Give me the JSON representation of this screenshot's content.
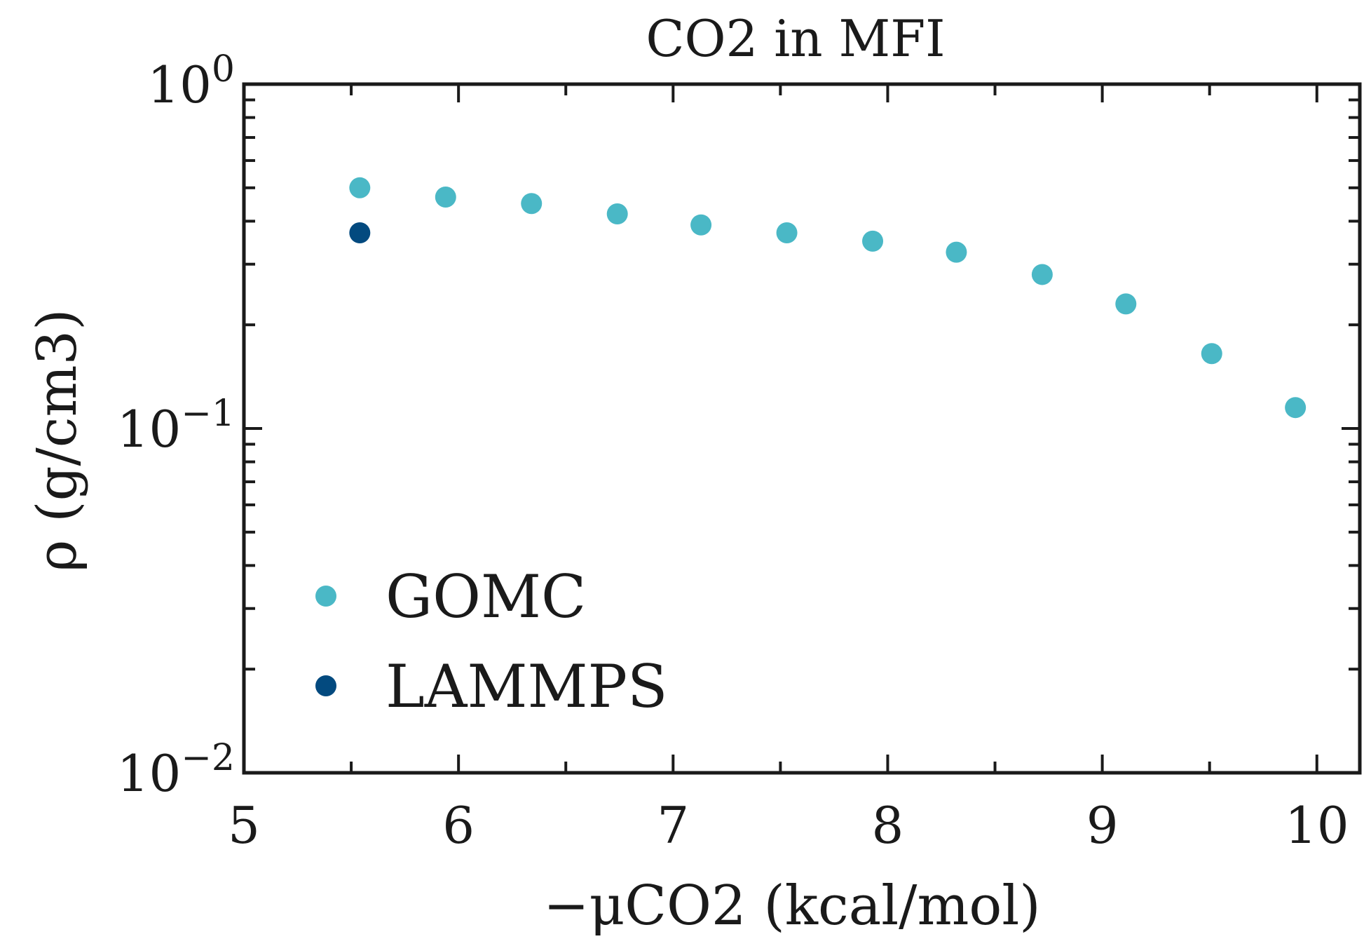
{
  "chart_data": {
    "type": "scatter",
    "title": "CO2 in MFI",
    "xlabel": "−μCO2 (kcal/mol)",
    "ylabel": "ρ (g/cm3)",
    "xlim": [
      5,
      10.2
    ],
    "ylim": [
      0.01,
      1
    ],
    "yscale": "log",
    "x_ticks": [
      5,
      6,
      7,
      8,
      9,
      10
    ],
    "x_tick_labels": [
      "5",
      "6",
      "7",
      "8",
      "9",
      "10"
    ],
    "y_ticks": [
      0.01,
      0.1,
      1
    ],
    "y_tick_labels": [
      {
        "base": "10",
        "exp": "−2"
      },
      {
        "base": "10",
        "exp": "−1"
      },
      {
        "base": "10",
        "exp": "0"
      }
    ],
    "legend_position": "lower-left",
    "series": [
      {
        "name": "GOMC",
        "color": "#4ab8c6",
        "x": [
          5.54,
          5.94,
          6.34,
          6.74,
          7.13,
          7.53,
          7.93,
          8.32,
          8.72,
          9.11,
          9.51,
          9.9
        ],
        "y": [
          0.5,
          0.47,
          0.45,
          0.42,
          0.39,
          0.37,
          0.35,
          0.325,
          0.28,
          0.23,
          0.165,
          0.115
        ]
      },
      {
        "name": "LAMMPS",
        "color": "#034a7f",
        "x": [
          5.54
        ],
        "y": [
          0.37
        ]
      }
    ]
  }
}
